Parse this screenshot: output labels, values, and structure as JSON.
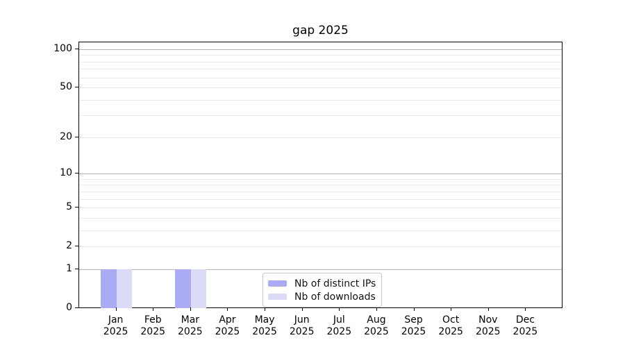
{
  "chart_data": {
    "type": "bar",
    "title": "gap 2025",
    "categories": [
      "Jan 2025",
      "Feb 2025",
      "Mar 2025",
      "Apr 2025",
      "May 2025",
      "Jun 2025",
      "Jul 2025",
      "Aug 2025",
      "Sep 2025",
      "Oct 2025",
      "Nov 2025",
      "Dec 2025"
    ],
    "series": [
      {
        "name": "Nb of distinct IPs",
        "color": "#aaaaf5",
        "values": [
          1,
          0,
          1,
          0,
          0,
          0,
          0,
          0,
          0,
          0,
          0,
          0
        ]
      },
      {
        "name": "Nb of downloads",
        "color": "#dbdbf8",
        "values": [
          1,
          0,
          1,
          0,
          0,
          0,
          0,
          0,
          0,
          0,
          0,
          0
        ]
      }
    ],
    "xlabel": "",
    "ylabel": "",
    "yscale": "log1p",
    "ylim": [
      0,
      113
    ],
    "y_ticks": [
      0,
      1,
      2,
      5,
      10,
      20,
      50,
      100
    ],
    "y_major_gridlines": [
      1,
      10,
      100
    ],
    "y_minor_gridlines": [
      2,
      3,
      4,
      5,
      6,
      7,
      8,
      9,
      20,
      30,
      40,
      50,
      60,
      70,
      80,
      90
    ],
    "grid": true,
    "legend_position": "lower center"
  },
  "colors": {
    "background": "#ffffff",
    "spine": "#000000",
    "major_grid": "#b4b4b4",
    "minor_grid": "#e9e9e9",
    "legend_border": "#c8c8c8",
    "text": "#000000"
  }
}
